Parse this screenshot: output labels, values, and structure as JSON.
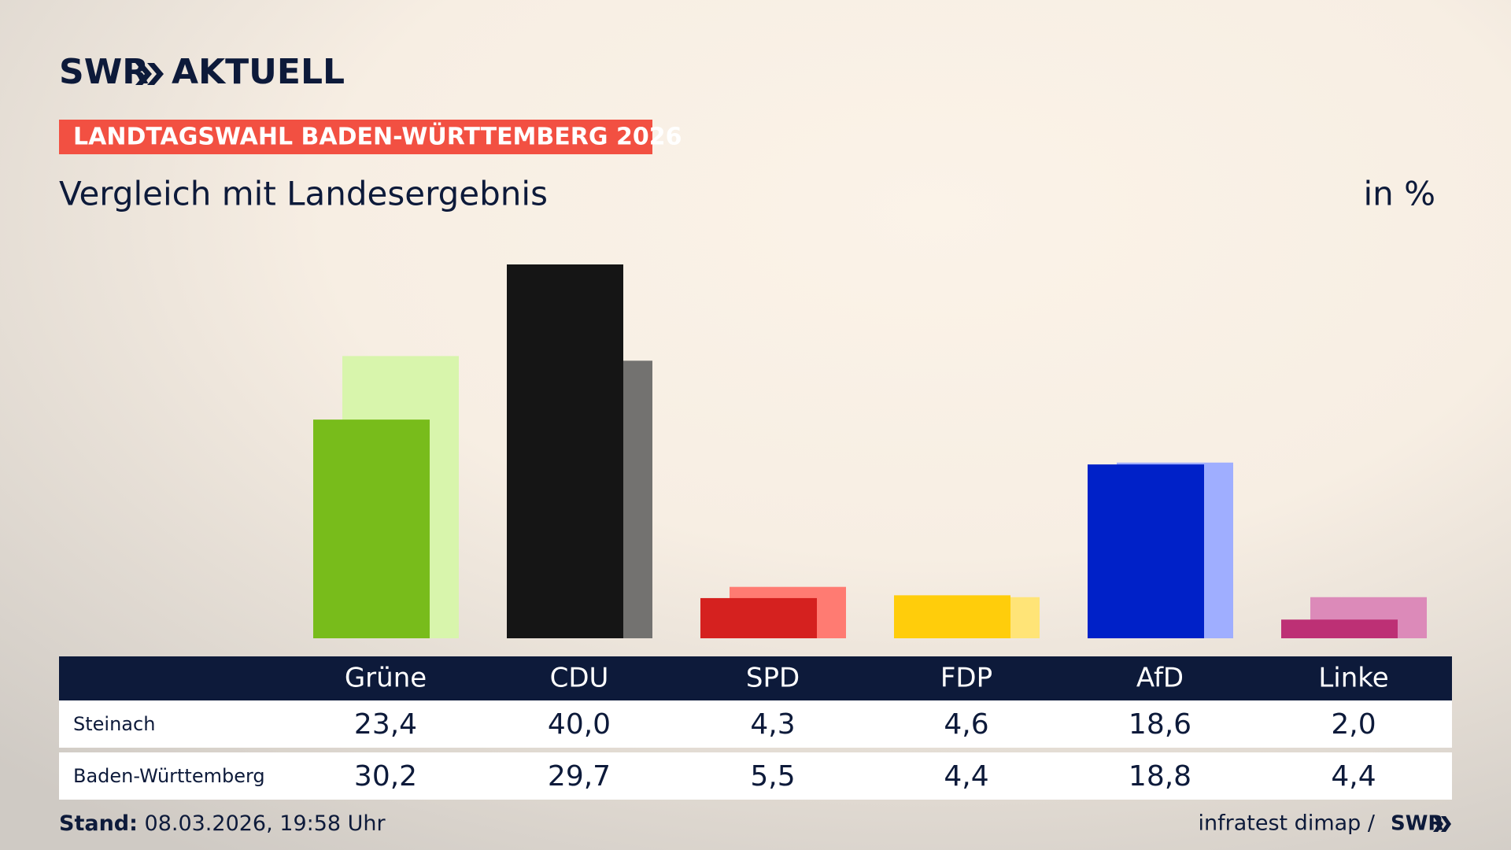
{
  "brand": {
    "logo": "SWR",
    "name": "AKTUELL"
  },
  "chart_data": {
    "type": "bar",
    "kicker": "LANDTAGSWAHL BADEN-WÜRTTEMBERG 2026",
    "title": "Vergleich mit Landesergebnis",
    "unit": "in %",
    "categories": [
      "Grüne",
      "CDU",
      "SPD",
      "FDP",
      "AfD",
      "Linke"
    ],
    "series": [
      {
        "name": "Steinach",
        "color": [
          "#78bc1b",
          "#151515",
          "#d5211f",
          "#ffcd0b",
          "#0021c8",
          "#bd3075"
        ],
        "values": [
          23.4,
          40.0,
          4.3,
          4.6,
          18.6,
          2.0
        ],
        "value_labels": [
          "23,4",
          "40,0",
          "4,3",
          "4,6",
          "18,6",
          "2,0"
        ]
      },
      {
        "name": "Baden-Württemberg",
        "color": [
          "#d8f5ac",
          "#737270",
          "#ff7b72",
          "#ffe477",
          "#9faeff",
          "#dc8ab9"
        ],
        "values": [
          30.2,
          29.7,
          5.5,
          4.4,
          18.8,
          4.4
        ],
        "value_labels": [
          "30,2",
          "29,7",
          "5,5",
          "4,4",
          "18,8",
          "4,4"
        ]
      }
    ]
  },
  "footer": {
    "stand_label": "Stand:",
    "stand": "08.03.2026, 19:58 Uhr",
    "source": "infratest dimap /",
    "source_logo": "SWR"
  }
}
